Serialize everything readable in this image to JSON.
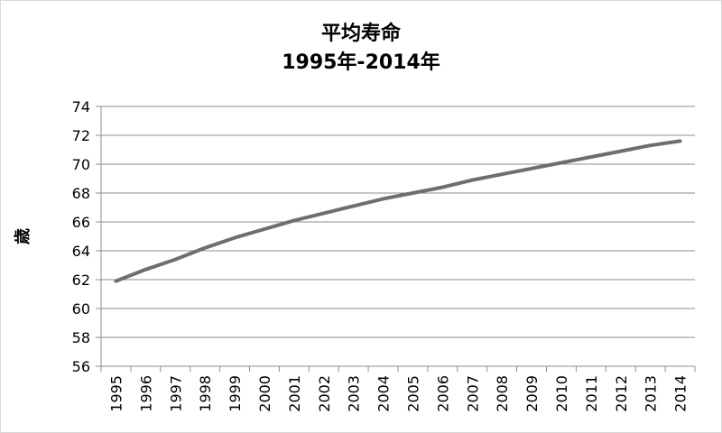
{
  "chart_data": {
    "type": "line",
    "title": "平均寿命",
    "subtitle": "1995年-2014年",
    "xlabel": "",
    "ylabel": "歳",
    "ylim": [
      56,
      74
    ],
    "yticks": [
      56,
      58,
      60,
      62,
      64,
      66,
      68,
      70,
      72,
      74
    ],
    "grid": true,
    "legend": "none",
    "categories": [
      "1995",
      "1996",
      "1997",
      "1998",
      "1999",
      "2000",
      "2001",
      "2002",
      "2003",
      "2004",
      "2005",
      "2006",
      "2007",
      "2008",
      "2009",
      "2010",
      "2011",
      "2012",
      "2013",
      "2014"
    ],
    "series": [
      {
        "color": "#6e6e6e",
        "values": [
          61.9,
          62.7,
          63.4,
          64.2,
          64.9,
          65.5,
          66.1,
          66.6,
          67.1,
          67.6,
          68.0,
          68.4,
          68.9,
          69.3,
          69.7,
          70.1,
          70.5,
          70.9,
          71.3,
          71.6
        ]
      }
    ]
  }
}
